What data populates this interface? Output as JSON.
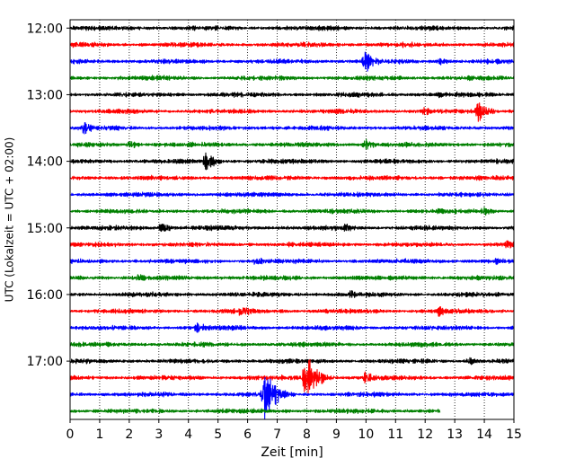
{
  "chart_data": {
    "type": "line",
    "title": "",
    "xlabel": "Zeit  [min]",
    "ylabel": "UTC (Lokalzeit = UTC + 02:00)",
    "xlim": [
      0,
      15
    ],
    "x_ticks": [
      0,
      1,
      2,
      3,
      4,
      5,
      6,
      7,
      8,
      9,
      10,
      11,
      12,
      13,
      14,
      15
    ],
    "x_tick_labels": [
      "0",
      "1",
      "2",
      "3",
      "4",
      "5",
      "6",
      "7",
      "8",
      "9",
      "10",
      "11",
      "12",
      "13",
      "14",
      "15"
    ],
    "y_tick_labels": [
      "12:00",
      "13:00",
      "14:00",
      "15:00",
      "16:00",
      "17:00"
    ],
    "grid": {
      "x": "dotted",
      "y": "off"
    },
    "minutes_per_trace": 15,
    "trace_colors": [
      "#000000",
      "#ff0000",
      "#0000ff",
      "#008000"
    ],
    "traces": [
      {
        "start": "12:00",
        "color": "#000000",
        "end_min": 15,
        "events": [
          {
            "t": 2.0,
            "amp": 0.25
          }
        ]
      },
      {
        "start": "12:15",
        "color": "#ff0000",
        "end_min": 15,
        "events": []
      },
      {
        "start": "12:30",
        "color": "#0000ff",
        "end_min": 15,
        "events": [
          {
            "t": 10.0,
            "amp": 0.9
          },
          {
            "t": 12.5,
            "amp": 0.35
          }
        ]
      },
      {
        "start": "12:45",
        "color": "#008000",
        "end_min": 15,
        "events": []
      },
      {
        "start": "13:00",
        "color": "#000000",
        "end_min": 15,
        "events": [
          {
            "t": 12.5,
            "amp": 0.3
          }
        ]
      },
      {
        "start": "13:15",
        "color": "#ff0000",
        "end_min": 15,
        "events": [
          {
            "t": 12.0,
            "amp": 0.35
          },
          {
            "t": 13.8,
            "amp": 0.9
          }
        ]
      },
      {
        "start": "13:30",
        "color": "#0000ff",
        "end_min": 15,
        "events": [
          {
            "t": 0.5,
            "amp": 0.6
          }
        ]
      },
      {
        "start": "13:45",
        "color": "#008000",
        "end_min": 15,
        "events": [
          {
            "t": 2.0,
            "amp": 0.4
          },
          {
            "t": 10.0,
            "amp": 0.55
          }
        ]
      },
      {
        "start": "14:00",
        "color": "#000000",
        "end_min": 15,
        "events": [
          {
            "t": 4.6,
            "amp": 0.8
          }
        ]
      },
      {
        "start": "14:15",
        "color": "#ff0000",
        "end_min": 15,
        "events": []
      },
      {
        "start": "14:30",
        "color": "#0000ff",
        "end_min": 15,
        "events": []
      },
      {
        "start": "14:45",
        "color": "#008000",
        "end_min": 15,
        "events": [
          {
            "t": 14.0,
            "amp": 0.45
          }
        ]
      },
      {
        "start": "15:00",
        "color": "#000000",
        "end_min": 15,
        "events": [
          {
            "t": 3.1,
            "amp": 0.45
          },
          {
            "t": 9.3,
            "amp": 0.4
          }
        ]
      },
      {
        "start": "15:15",
        "color": "#ff0000",
        "end_min": 15,
        "events": [
          {
            "t": 14.8,
            "amp": 0.4
          }
        ]
      },
      {
        "start": "15:30",
        "color": "#0000ff",
        "end_min": 15,
        "events": [
          {
            "t": 6.3,
            "amp": 0.4
          },
          {
            "t": 14.4,
            "amp": 0.35
          }
        ]
      },
      {
        "start": "15:45",
        "color": "#008000",
        "end_min": 15,
        "events": [
          {
            "t": 2.3,
            "amp": 0.4
          }
        ]
      },
      {
        "start": "16:00",
        "color": "#000000",
        "end_min": 15,
        "events": [
          {
            "t": 9.5,
            "amp": 0.35
          }
        ]
      },
      {
        "start": "16:15",
        "color": "#ff0000",
        "end_min": 15,
        "events": [
          {
            "t": 5.8,
            "amp": 0.6
          },
          {
            "t": 12.5,
            "amp": 0.45
          }
        ]
      },
      {
        "start": "16:30",
        "color": "#0000ff",
        "end_min": 15,
        "events": [
          {
            "t": 4.3,
            "amp": 0.5
          }
        ]
      },
      {
        "start": "16:45",
        "color": "#008000",
        "end_min": 15,
        "events": []
      },
      {
        "start": "17:00",
        "color": "#000000",
        "end_min": 15,
        "events": [
          {
            "t": 13.5,
            "amp": 0.4
          }
        ]
      },
      {
        "start": "17:15",
        "color": "#ff0000",
        "end_min": 15,
        "events": [
          {
            "t": 8.0,
            "amp": 2.3
          },
          {
            "t": 10.0,
            "amp": 0.5
          }
        ]
      },
      {
        "start": "17:30",
        "color": "#0000ff",
        "end_min": 15,
        "events": [
          {
            "t": 6.6,
            "amp": 2.4
          }
        ]
      },
      {
        "start": "17:45",
        "color": "#008000",
        "end_min": 12.5,
        "events": []
      }
    ]
  }
}
